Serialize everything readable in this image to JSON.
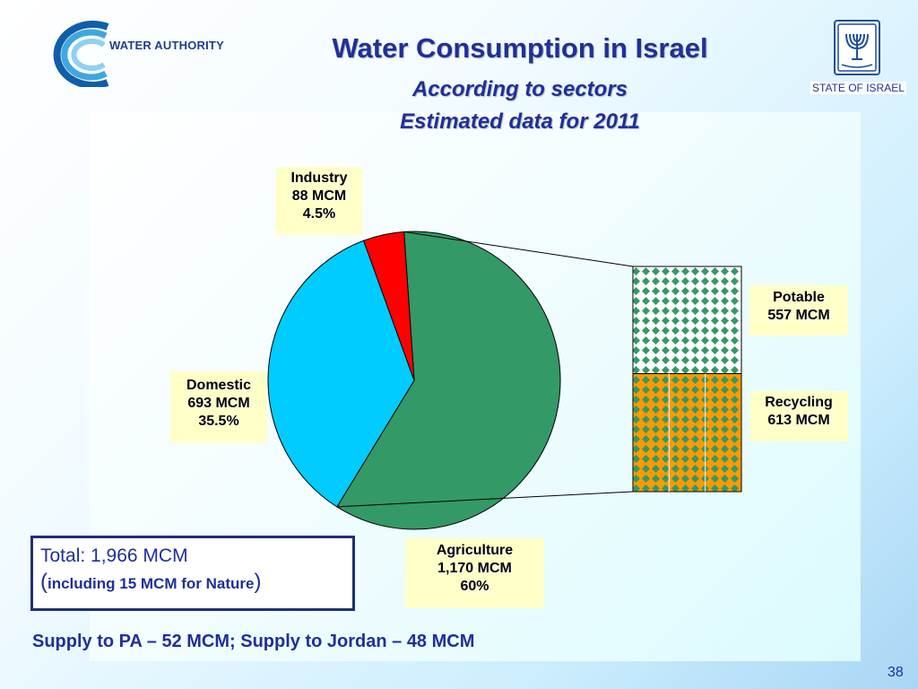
{
  "header": {
    "logo_text": "WATER AUTHORITY",
    "state_label": "STATE OF ISRAEL"
  },
  "chart_data": {
    "type": "pie",
    "title": "Water Consumption in Israel",
    "subtitle_1": "According to sectors",
    "subtitle_2": "Estimated data for 2011",
    "slices": [
      {
        "name": "Agriculture",
        "value_text": "1,170 MCM",
        "pct_text": "60%",
        "value": 1170,
        "color": "#339966"
      },
      {
        "name": "Domestic",
        "value_text": "693 MCM",
        "pct_text": "35.5%",
        "value": 693,
        "color": "#00ccff"
      },
      {
        "name": "Industry",
        "value_text": "88 MCM",
        "pct_text": "4.5%",
        "value": 88,
        "color": "#ff0000"
      }
    ],
    "breakdown": {
      "of": "Agriculture",
      "parts": [
        {
          "name": "Potable",
          "value_text": "557 MCM",
          "value": 557,
          "pattern_color": "#339966"
        },
        {
          "name": "Recycling",
          "value_text": "613 MCM",
          "value": 613,
          "pattern_color": "#339966",
          "background": "#ff9900"
        }
      ]
    }
  },
  "total": {
    "line1": "Total: 1,966 MCM",
    "open_paren": "(",
    "note": "including 15 MCM for Nature",
    "close_paren": ")"
  },
  "supply_note": "Supply to PA – 52 MCM; Supply to Jordan – 48 MCM",
  "page_number": "38",
  "colors": {
    "title": "#1f2f9a",
    "label_bg": "#ffffc8"
  }
}
